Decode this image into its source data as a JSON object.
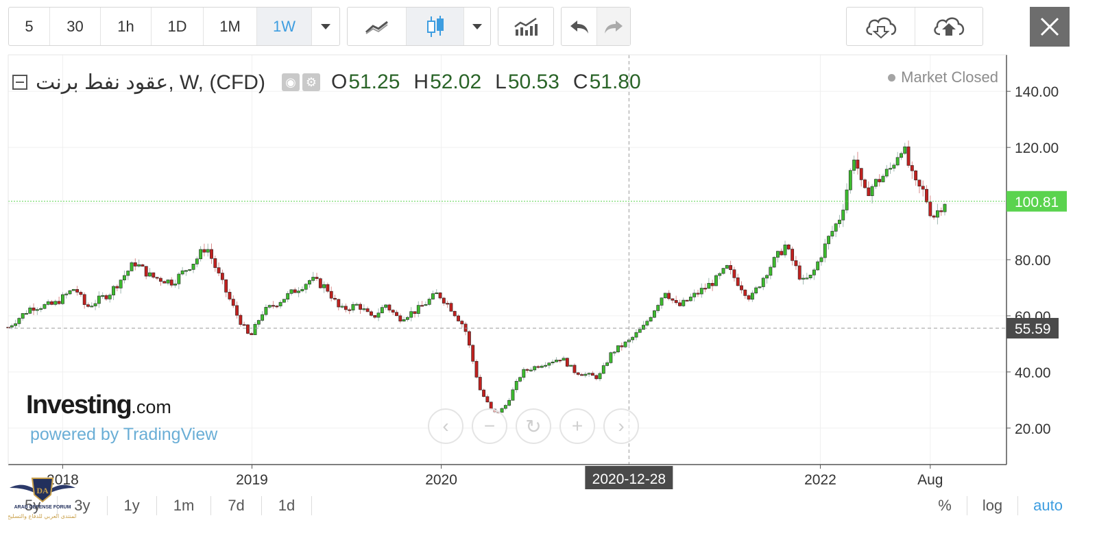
{
  "toolbar": {
    "intervals": [
      "5",
      "30",
      "1h",
      "1D",
      "1M",
      "1W"
    ],
    "active_interval": "1W"
  },
  "legend": {
    "symbol": "عقود نفط برنت, W, (CFD)",
    "open_label": "O",
    "open": "51.25",
    "high_label": "H",
    "high": "52.02",
    "low_label": "L",
    "low": "50.53",
    "close_label": "C",
    "close": "51.80"
  },
  "market_status": "Market Closed",
  "logo": {
    "brand": "Investing",
    "suffix": ".com",
    "powered": "powered by TradingView"
  },
  "ranges": [
    "5y",
    "3y",
    "1y",
    "1m",
    "7d",
    "1d"
  ],
  "scale_options": [
    "%",
    "log",
    "auto"
  ],
  "active_scale": "auto",
  "watermark_text": "ARAB DEFENSE FORUM",
  "colors": {
    "up": "#3dbb2f",
    "down": "#c0211f",
    "last_price": "#5ad34e",
    "crosshair_label": "#4a4a4a"
  },
  "chart_data": {
    "type": "candlestick",
    "interval": "W",
    "y_ticks": [
      "20.00",
      "40.00",
      "60.00",
      "80.00",
      "100.00",
      "120.00",
      "140.00"
    ],
    "ylim": [
      7,
      153
    ],
    "x_ticks": [
      "2018",
      "2019",
      "2020",
      "2022",
      "Aug"
    ],
    "x_tick_dates": [
      "2018-01-01",
      "2019-01-01",
      "2020-01-01",
      "2022-01-01",
      "2022-08-01"
    ],
    "xlim": [
      "2017-09-18",
      "2022-12-26"
    ],
    "last_price": 100.81,
    "crosshair": {
      "date": "2020-12-28",
      "price": 55.59,
      "date_label": "2020-12-28",
      "price_label": "55.59"
    },
    "grid": true,
    "series_points": [
      [
        "2017-09-18",
        56
      ],
      [
        "2017-11-01",
        63
      ],
      [
        "2017-12-15",
        64
      ],
      [
        "2018-01-25",
        70
      ],
      [
        "2018-02-15",
        63
      ],
      [
        "2018-04-01",
        68
      ],
      [
        "2018-05-20",
        79
      ],
      [
        "2018-06-20",
        74
      ],
      [
        "2018-08-01",
        72
      ],
      [
        "2018-09-15",
        80
      ],
      [
        "2018-10-05",
        85
      ],
      [
        "2018-11-01",
        73
      ],
      [
        "2018-12-01",
        61
      ],
      [
        "2018-12-28",
        52
      ],
      [
        "2019-01-20",
        61
      ],
      [
        "2019-03-01",
        66
      ],
      [
        "2019-04-25",
        73
      ],
      [
        "2019-05-25",
        70
      ],
      [
        "2019-06-20",
        62
      ],
      [
        "2019-07-25",
        64
      ],
      [
        "2019-08-20",
        59
      ],
      [
        "2019-09-16",
        64
      ],
      [
        "2019-10-10",
        59
      ],
      [
        "2019-11-15",
        62
      ],
      [
        "2019-12-25",
        68
      ],
      [
        "2020-01-15",
        64
      ],
      [
        "2020-02-15",
        56
      ],
      [
        "2020-03-15",
        34
      ],
      [
        "2020-04-10",
        25
      ],
      [
        "2020-05-01",
        27
      ],
      [
        "2020-06-05",
        40
      ],
      [
        "2020-07-15",
        43
      ],
      [
        "2020-08-20",
        45
      ],
      [
        "2020-09-15",
        40
      ],
      [
        "2020-10-30",
        38
      ],
      [
        "2020-11-25",
        47
      ],
      [
        "2020-12-28",
        51
      ],
      [
        "2021-01-25",
        56
      ],
      [
        "2021-03-08",
        69
      ],
      [
        "2021-04-01",
        63
      ],
      [
        "2021-05-01",
        67
      ],
      [
        "2021-06-15",
        73
      ],
      [
        "2021-07-05",
        77
      ],
      [
        "2021-08-20",
        66
      ],
      [
        "2021-09-20",
        76
      ],
      [
        "2021-10-25",
        85
      ],
      [
        "2021-11-28",
        72
      ],
      [
        "2021-12-15",
        74
      ],
      [
        "2022-01-15",
        87
      ],
      [
        "2022-02-10",
        96
      ],
      [
        "2022-03-08",
        118
      ],
      [
        "2022-03-25",
        103
      ],
      [
        "2022-04-15",
        107
      ],
      [
        "2022-05-15",
        112
      ],
      [
        "2022-06-08",
        121
      ],
      [
        "2022-07-01",
        107
      ],
      [
        "2022-07-20",
        104
      ],
      [
        "2022-08-05",
        95
      ],
      [
        "2022-08-29",
        100.81
      ]
    ]
  }
}
